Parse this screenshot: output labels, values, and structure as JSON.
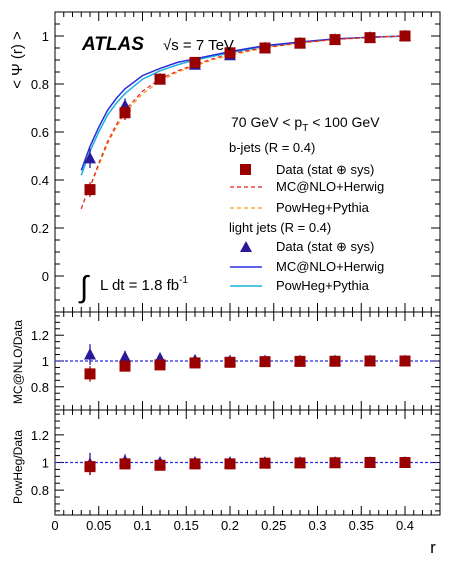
{
  "chart_data": {
    "type": "scatter",
    "top": {
      "experiment": "ATLAS",
      "energy": "√s = 7 TeV",
      "ylabel": "< Ψ (r) >",
      "ylim": [
        -0.15,
        1.1
      ],
      "yticks": [
        "0",
        "0.2",
        "0.4",
        "0.6",
        "0.8",
        "1"
      ],
      "pt_label": "70 GeV < p",
      "pt_sub": "T",
      "pt_label_tail": " < 100 GeV",
      "lumi_text": "L dt = 1.8 fb",
      "lumi_sup": "-1",
      "lumi_integral": "∫"
    },
    "ratio1": {
      "ylabel": "MC@NLO/Data",
      "ylim": [
        0.62,
        1.38
      ],
      "yticks": [
        "0.8",
        "1",
        "1.2"
      ]
    },
    "ratio2": {
      "ylabel": "PowHeg/Data",
      "ylim": [
        0.62,
        1.38
      ],
      "yticks": [
        "0.8",
        "1",
        "1.2"
      ]
    },
    "xlabel": "r",
    "xlim": [
      0,
      0.44
    ],
    "xticks": [
      "0",
      "0.05",
      "0.1",
      "0.15",
      "0.2",
      "0.25",
      "0.3",
      "0.35",
      "0.4"
    ],
    "legend": {
      "bjets_title": "b-jets (R = 0.4)",
      "ljets_title": "light jets (R = 0.4)",
      "data_label": "Data (stat ⊕ sys)",
      "mcnlo_label": "MC@NLO+Herwig",
      "powheg_label": "PowHeg+Pythia"
    },
    "colors": {
      "bdata": "#990000",
      "ldata": "#2a1a9a",
      "b_mcnlo": "#e82020",
      "b_powheg": "#f59a1a",
      "l_mcnlo": "#2b2bdd",
      "l_powheg": "#1ab0d8",
      "ref_line": "#2b2bdd"
    },
    "x": [
      0.04,
      0.08,
      0.12,
      0.16,
      0.2,
      0.24,
      0.28,
      0.32,
      0.36,
      0.4
    ],
    "bjets_data": [
      0.36,
      0.68,
      0.82,
      0.89,
      0.93,
      0.95,
      0.97,
      0.985,
      0.993,
      1.0
    ],
    "bjets_err": [
      0.03,
      0.03,
      0.02,
      0.015,
      0.01,
      0.008,
      0.006,
      0.004,
      0.003,
      0.0
    ],
    "ljets_data": [
      0.49,
      0.71,
      0.82,
      0.88,
      0.92,
      0.95,
      0.97,
      0.985,
      0.993,
      1.0
    ],
    "ljets_err": [
      0.04,
      0.03,
      0.02,
      0.015,
      0.01,
      0.008,
      0.006,
      0.004,
      0.003,
      0.0
    ],
    "curve_x": [
      0.03,
      0.035,
      0.04,
      0.05,
      0.06,
      0.07,
      0.08,
      0.1,
      0.12,
      0.14,
      0.16,
      0.18,
      0.2,
      0.24,
      0.28,
      0.32,
      0.36,
      0.4
    ],
    "b_mcnlo": [
      0.28,
      0.33,
      0.37,
      0.47,
      0.56,
      0.63,
      0.69,
      0.77,
      0.82,
      0.855,
      0.88,
      0.905,
      0.925,
      0.952,
      0.972,
      0.986,
      0.994,
      1.0
    ],
    "b_powheg": [
      0.28,
      0.33,
      0.37,
      0.46,
      0.55,
      0.62,
      0.68,
      0.76,
      0.81,
      0.85,
      0.875,
      0.9,
      0.92,
      0.95,
      0.97,
      0.985,
      0.994,
      1.0
    ],
    "l_mcnlo": [
      0.44,
      0.49,
      0.54,
      0.62,
      0.69,
      0.74,
      0.78,
      0.835,
      0.865,
      0.89,
      0.905,
      0.92,
      0.935,
      0.96,
      0.975,
      0.988,
      0.995,
      1.0
    ],
    "l_powheg": [
      0.42,
      0.47,
      0.52,
      0.6,
      0.67,
      0.72,
      0.76,
      0.82,
      0.855,
      0.88,
      0.9,
      0.915,
      0.93,
      0.957,
      0.973,
      0.987,
      0.995,
      1.0
    ],
    "ratio1_b": [
      0.9,
      0.96,
      0.97,
      0.985,
      0.99,
      0.995,
      0.997,
      0.998,
      1.0,
      1.0
    ],
    "ratio1_b_err": [
      0.06,
      0.04,
      0.025,
      0.02,
      0.015,
      0.012,
      0.01,
      0.008,
      0.005,
      0.0
    ],
    "ratio1_l": [
      1.05,
      1.03,
      1.02,
      1.005,
      1.0,
      1.0,
      1.0,
      1.0,
      1.0,
      1.0
    ],
    "ratio1_l_err": [
      0.08,
      0.05,
      0.03,
      0.02,
      0.015,
      0.012,
      0.01,
      0.008,
      0.005,
      0.0
    ],
    "ratio2_b": [
      0.97,
      0.99,
      0.98,
      0.99,
      0.99,
      0.995,
      0.997,
      0.998,
      1.0,
      1.0
    ],
    "ratio2_b_err": [
      0.06,
      0.04,
      0.025,
      0.02,
      0.015,
      0.012,
      0.01,
      0.008,
      0.005,
      0.0
    ],
    "ratio2_l": [
      0.99,
      1.01,
      1.0,
      1.0,
      1.0,
      1.0,
      1.0,
      1.0,
      1.0,
      1.0
    ],
    "ratio2_l_err": [
      0.08,
      0.05,
      0.03,
      0.02,
      0.015,
      0.012,
      0.01,
      0.008,
      0.005,
      0.0
    ]
  }
}
